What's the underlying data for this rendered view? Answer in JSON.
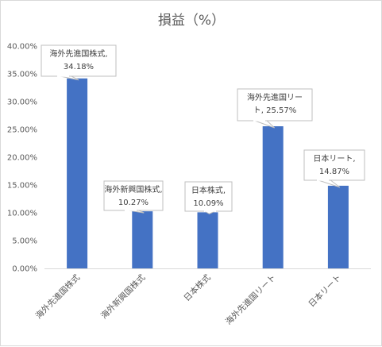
{
  "chart_data": {
    "type": "bar",
    "title": "損益（%）",
    "categories": [
      "海外先進国株式",
      "海外新興国株式",
      "日本株式",
      "海外先進国リート",
      "日本リート"
    ],
    "values": [
      34.18,
      10.27,
      10.09,
      25.57,
      14.87
    ],
    "ylim": [
      0,
      40
    ],
    "yticks": [
      0,
      5,
      10,
      15,
      20,
      25,
      30,
      35,
      40
    ],
    "ytick_labels": [
      "0.00%",
      "5.00%",
      "10.00%",
      "15.00%",
      "20.00%",
      "25.00%",
      "30.00%",
      "35.00%",
      "40.00%"
    ],
    "data_labels": [
      [
        "海外先進国株式,",
        "34.18%"
      ],
      [
        "海外新興国株式,",
        "10.27%"
      ],
      [
        "日本株式,",
        "10.09%"
      ],
      [
        "海外先進国リー",
        "ト, 25.57%"
      ],
      [
        "日本リート,",
        "14.87%"
      ]
    ],
    "bar_color": "#4472c4",
    "grid": false,
    "legend": "none"
  }
}
